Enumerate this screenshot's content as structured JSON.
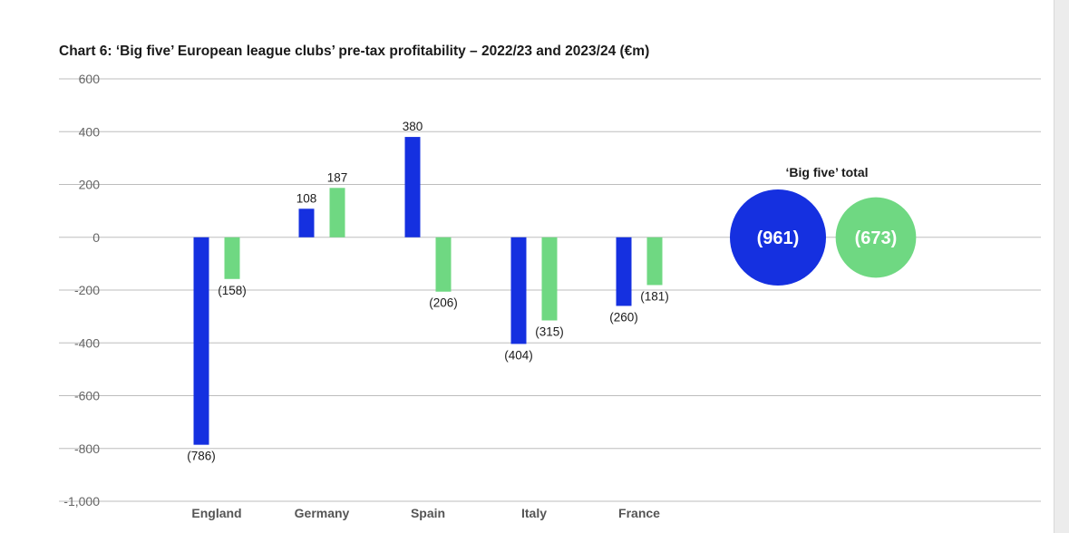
{
  "colors": {
    "series1": "#1530e0",
    "series2": "#6fd882"
  },
  "chart_data": {
    "type": "bar",
    "title": "Chart 6: ‘Big five’ European league clubs’ pre-tax profitability – 2022/23 and 2023/24 (€m)",
    "categories": [
      "England",
      "Germany",
      "Spain",
      "Italy",
      "France"
    ],
    "series": [
      {
        "values": [
          -786,
          108,
          380,
          -404,
          -260
        ],
        "labels": [
          "(786)",
          "108",
          "380",
          "(404)",
          "(260)"
        ]
      },
      {
        "values": [
          -158,
          187,
          -206,
          -315,
          -181
        ],
        "labels": [
          "(158)",
          "187",
          "(206)",
          "(315)",
          "(181)"
        ]
      }
    ],
    "ylim": [
      -1000,
      600
    ],
    "yticks": [
      600,
      400,
      200,
      0,
      -200,
      -400,
      -600,
      -800,
      -1000
    ],
    "ytick_labels": [
      "600",
      "400",
      "200",
      "0",
      "-200",
      "-400",
      "-600",
      "-800",
      "-1,000"
    ],
    "grid": true,
    "totals": {
      "title": "‘Big five’ total",
      "values": [
        -961,
        -673
      ],
      "labels": [
        "(961)",
        "(673)"
      ]
    }
  }
}
